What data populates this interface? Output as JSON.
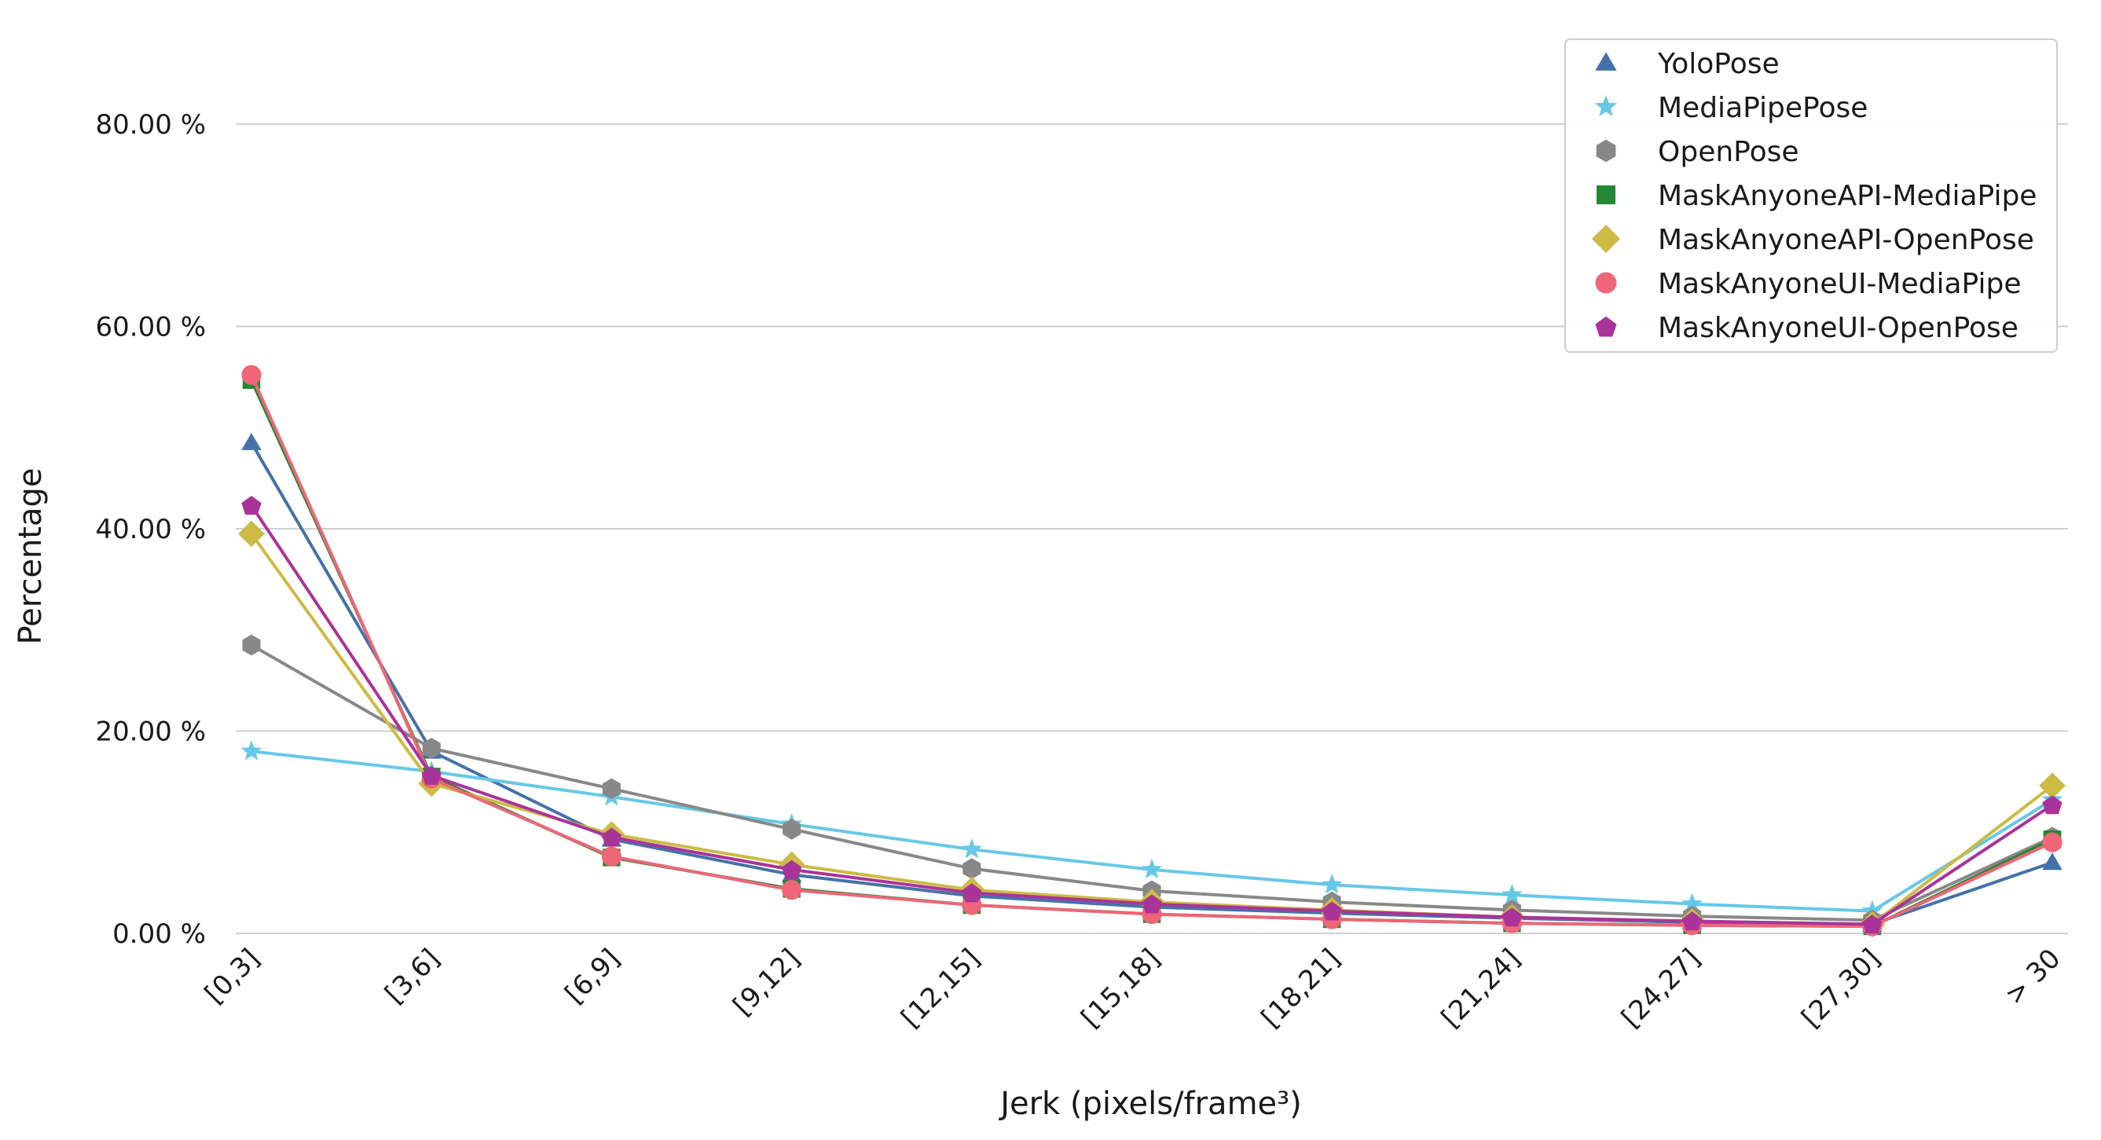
{
  "chart_data": {
    "type": "line",
    "title": "",
    "xlabel": "Jerk (pixels/frame³)",
    "ylabel": "Percentage",
    "ylim": [
      0,
      90
    ],
    "yticks": [
      0,
      20,
      40,
      60,
      80
    ],
    "ytick_labels": [
      "0.00 %",
      "20.00 %",
      "40.00 %",
      "60.00 %",
      "80.00 %"
    ],
    "grid": "horizontal",
    "legend_position": "top-right",
    "categories": [
      "[0,3]",
      "[3,6]",
      "[6,9]",
      "[9,12]",
      "[12,15]",
      "[15,18]",
      "[18,21]",
      "[21,24]",
      "[24,27]",
      "[27,30]",
      "> 30"
    ],
    "series": [
      {
        "name": "YoloPose",
        "color": "#4472a8",
        "marker": "triangle",
        "values": [
          48.5,
          18.0,
          9.3,
          5.8,
          3.7,
          2.6,
          2.0,
          1.5,
          1.1,
          0.9,
          7.0
        ]
      },
      {
        "name": "MediaPipePose",
        "color": "#66c8e8",
        "marker": "star",
        "values": [
          18.0,
          16.0,
          13.5,
          10.8,
          8.3,
          6.3,
          4.8,
          3.8,
          2.9,
          2.2,
          13.2
        ]
      },
      {
        "name": "OpenPose",
        "color": "#888888",
        "marker": "hexagon",
        "values": [
          28.5,
          18.3,
          14.3,
          10.3,
          6.4,
          4.2,
          3.1,
          2.3,
          1.7,
          1.3,
          9.5
        ]
      },
      {
        "name": "MaskAnyoneAPI-MediaPipe",
        "color": "#228833",
        "marker": "square",
        "values": [
          54.7,
          15.5,
          7.5,
          4.4,
          2.8,
          1.9,
          1.4,
          1.0,
          0.8,
          0.7,
          9.3
        ]
      },
      {
        "name": "MaskAnyoneAPI-OpenPose",
        "color": "#ccbb44",
        "marker": "diamond",
        "values": [
          39.5,
          14.8,
          9.8,
          6.8,
          4.3,
          3.1,
          2.3,
          1.6,
          1.2,
          0.9,
          14.6
        ]
      },
      {
        "name": "MaskAnyoneUI-MediaPipe",
        "color": "#ee6677",
        "marker": "circle",
        "values": [
          55.2,
          15.3,
          7.6,
          4.3,
          2.8,
          1.9,
          1.4,
          1.0,
          0.8,
          0.7,
          9.0
        ]
      },
      {
        "name": "MaskAnyoneUI-OpenPose",
        "color": "#aa3399",
        "marker": "pentagon",
        "values": [
          42.3,
          15.6,
          9.5,
          6.3,
          4.0,
          2.9,
          2.2,
          1.6,
          1.2,
          0.9,
          12.7
        ]
      }
    ]
  }
}
